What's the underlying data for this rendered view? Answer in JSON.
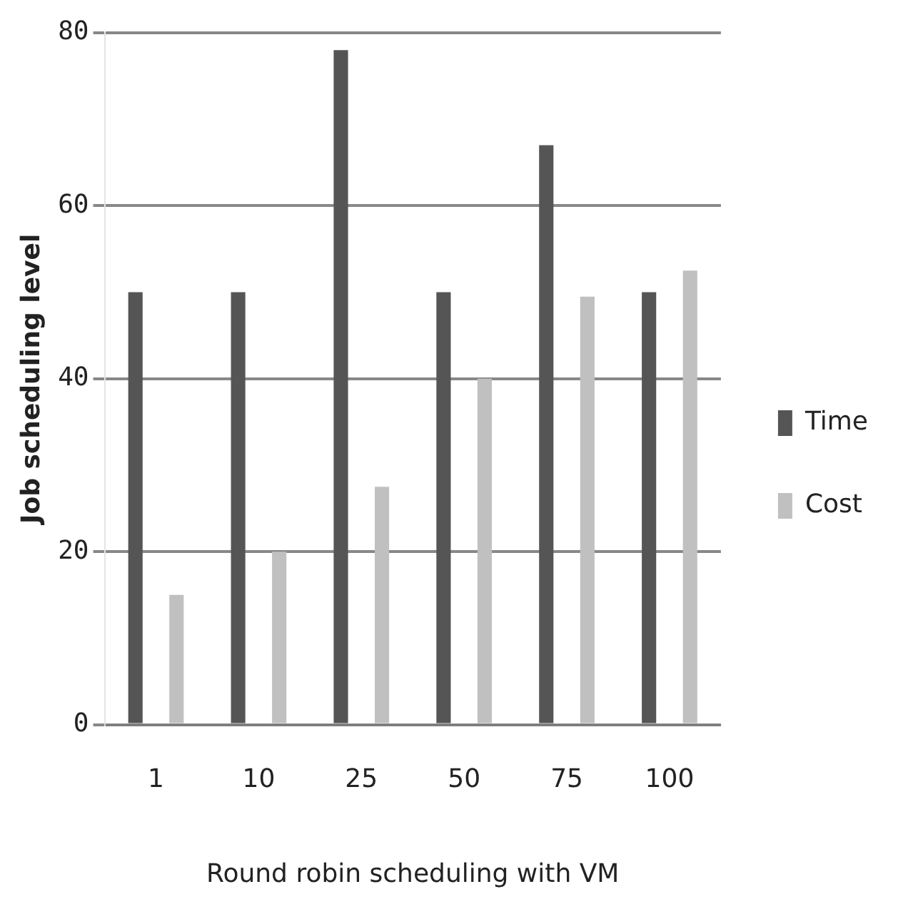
{
  "chart_data": {
    "type": "bar",
    "xlabel": "Round robin scheduling with VM",
    "ylabel": "Job scheduling level",
    "categories": [
      "1",
      "10",
      "25",
      "50",
      "75",
      "100"
    ],
    "series": [
      {
        "name": "Time",
        "color": "#555555",
        "values": [
          50,
          50,
          78,
          50,
          67,
          50
        ]
      },
      {
        "name": "Cost",
        "color": "#c0c0c0",
        "values": [
          15,
          20,
          27.5,
          40,
          49.5,
          52.5
        ]
      }
    ],
    "ylim": [
      0,
      80
    ],
    "yticks": [
      0,
      20,
      40,
      60,
      80
    ],
    "grid": "y",
    "legend": "right"
  }
}
